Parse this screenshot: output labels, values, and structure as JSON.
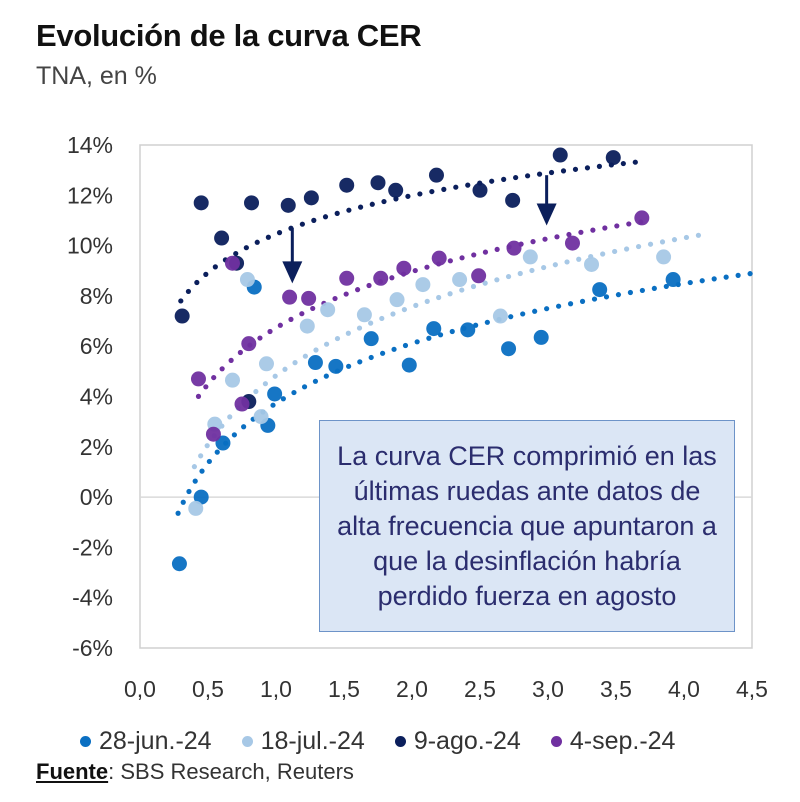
{
  "chart_data": {
    "type": "scatter",
    "title": "Evolución de la curva CER",
    "subtitle": "TNA, en %",
    "xlabel": "",
    "ylabel": "",
    "xlim": [
      0,
      4.5
    ],
    "ylim": [
      -6,
      14
    ],
    "x_ticks": [
      0,
      0.5,
      1.0,
      1.5,
      2.0,
      2.5,
      3.0,
      3.5,
      4.0,
      4.5
    ],
    "x_tick_labels": [
      "0,0",
      "0,5",
      "1,0",
      "1,5",
      "2,0",
      "2,5",
      "3,0",
      "3,5",
      "4,0",
      "4,5"
    ],
    "y_ticks": [
      14,
      12,
      10,
      8,
      6,
      4,
      2,
      0,
      -2,
      -4,
      -6
    ],
    "y_tick_labels": [
      "14%",
      "12%",
      "10%",
      "8%",
      "6%",
      "4%",
      "2%",
      "0%",
      "-2%",
      "-4%",
      "-6%"
    ],
    "grid": false,
    "zero_line": true,
    "legend_position": "bottom",
    "series": [
      {
        "name": "28-jun.-24",
        "color": "#0a6fc2",
        "trendline": {
          "type": "log",
          "a": 3.73,
          "b": 3.434,
          "x_range": [
            0.28,
            4.5
          ]
        },
        "points": [
          [
            0.29,
            -2.65
          ],
          [
            0.45,
            0.0
          ],
          [
            0.61,
            2.15
          ],
          [
            0.84,
            8.35
          ],
          [
            0.94,
            2.85
          ],
          [
            0.99,
            4.1
          ],
          [
            1.29,
            5.35
          ],
          [
            1.44,
            5.2
          ],
          [
            1.7,
            6.3
          ],
          [
            1.98,
            5.25
          ],
          [
            2.16,
            6.7
          ],
          [
            2.41,
            6.65
          ],
          [
            2.71,
            5.9
          ],
          [
            2.95,
            6.35
          ],
          [
            3.38,
            8.25
          ],
          [
            3.92,
            8.65
          ]
        ]
      },
      {
        "name": "18-jul.-24",
        "color": "#a7c8e6",
        "trendline": {
          "type": "log",
          "a": 4.83,
          "b": 3.95,
          "x_range": [
            0.4,
            4.15
          ]
        },
        "points": [
          [
            0.41,
            -0.45
          ],
          [
            0.55,
            2.9
          ],
          [
            0.68,
            4.65
          ],
          [
            0.79,
            8.65
          ],
          [
            0.89,
            3.2
          ],
          [
            0.93,
            5.3
          ],
          [
            1.23,
            6.8
          ],
          [
            1.38,
            7.45
          ],
          [
            1.65,
            7.25
          ],
          [
            1.89,
            7.85
          ],
          [
            2.08,
            8.45
          ],
          [
            2.35,
            8.65
          ],
          [
            2.65,
            7.2
          ],
          [
            2.87,
            9.55
          ],
          [
            3.32,
            9.25
          ],
          [
            3.85,
            9.55
          ]
        ]
      },
      {
        "name": "9-ago.-24",
        "color": "#0b1f5c",
        "trendline": {
          "type": "log",
          "a": 10.46,
          "b": 2.21,
          "x_range": [
            0.3,
            3.7
          ]
        },
        "points": [
          [
            0.31,
            7.2
          ],
          [
            0.45,
            11.7
          ],
          [
            0.6,
            10.3
          ],
          [
            0.71,
            9.3
          ],
          [
            0.8,
            3.8
          ],
          [
            0.82,
            11.7
          ],
          [
            1.09,
            11.6
          ],
          [
            1.26,
            11.9
          ],
          [
            1.52,
            12.4
          ],
          [
            1.75,
            12.5
          ],
          [
            1.88,
            12.2
          ],
          [
            2.18,
            12.8
          ],
          [
            2.5,
            12.2
          ],
          [
            2.74,
            11.8
          ],
          [
            3.09,
            13.6
          ],
          [
            3.48,
            13.5
          ]
        ]
      },
      {
        "name": "4-sep.-24",
        "color": "#7030a0",
        "trendline": {
          "type": "log",
          "a": 6.73,
          "b": 3.23,
          "x_range": [
            0.43,
            3.75
          ]
        },
        "points": [
          [
            0.43,
            4.7
          ],
          [
            0.54,
            2.5
          ],
          [
            0.68,
            9.3
          ],
          [
            0.75,
            3.7
          ],
          [
            0.8,
            6.1
          ],
          [
            1.1,
            7.95
          ],
          [
            1.24,
            7.9
          ],
          [
            1.52,
            8.7
          ],
          [
            1.77,
            8.7
          ],
          [
            1.94,
            9.1
          ],
          [
            2.2,
            9.5
          ],
          [
            2.49,
            8.8
          ],
          [
            2.75,
            9.9
          ],
          [
            3.18,
            10.1
          ],
          [
            3.69,
            11.1
          ]
        ]
      }
    ],
    "arrows": [
      {
        "x": 1.12,
        "y_from": 10.7,
        "y_to": 8.5,
        "color": "#0b1f5c"
      },
      {
        "x": 2.99,
        "y_from": 12.8,
        "y_to": 10.8,
        "color": "#0b1f5c"
      }
    ],
    "annotation": {
      "lines": [
        "La curva CER comprimió en las",
        "últimas ruedas ante datos de",
        "alta frecuencia que apuntaron a",
        "que la desinflación habría",
        "perdido fuerza en agosto"
      ]
    }
  },
  "header": {
    "title": "Evolución de la curva CER",
    "subtitle": "TNA, en %"
  },
  "legend": [
    {
      "label": "28-jun.-24",
      "color": "#0a6fc2"
    },
    {
      "label": "18-jul.-24",
      "color": "#a7c8e6"
    },
    {
      "label": "9-ago.-24",
      "color": "#0b1f5c"
    },
    {
      "label": "4-sep.-24",
      "color": "#7030a0"
    }
  ],
  "source": {
    "label": "Fuente",
    "text": ": SBS Research, Reuters"
  }
}
